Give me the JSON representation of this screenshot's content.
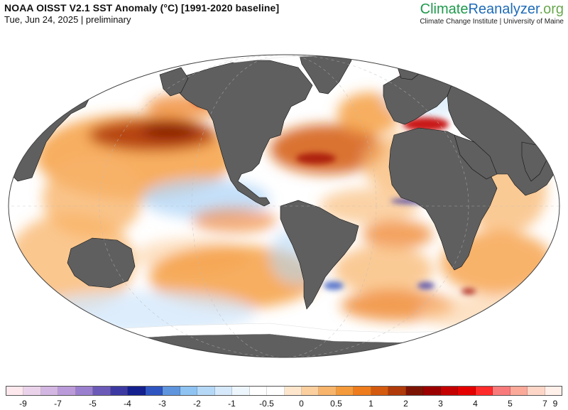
{
  "header": {
    "title": "NOAA OISST V2.1 SST Anomaly (°C) [1991-2020 baseline]",
    "subtitle": "Tue, Jun 24, 2025 | preliminary"
  },
  "brand": {
    "name_part1": "Climate",
    "name_part2": "Reanalyzer",
    "name_part3": ".org",
    "institution": "Climate Change Institute | University of Maine"
  },
  "colors": {
    "land": "#5f5f5f",
    "land_border": "#111111",
    "ice": "#ffffff",
    "ocean_neutral": "#ffffff",
    "brand_green": "#1e9a4c",
    "brand_blue": "#1e6bb8"
  },
  "legend": {
    "units": "°C",
    "swatches": [
      "#fde8ee",
      "#ead3ea",
      "#d4b6e2",
      "#bb9ad9",
      "#9b7fcf",
      "#6b5ab8",
      "#3c3aa2",
      "#14208e",
      "#2f55c0",
      "#5e95dd",
      "#8ec3f2",
      "#b5d8f7",
      "#d5e9fb",
      "#eef6fd",
      "#ffffff",
      "#ffffff",
      "#fde6cc",
      "#fbcf9e",
      "#f8b46a",
      "#f59a3a",
      "#ee7c1c",
      "#d45a10",
      "#b03a0a",
      "#7c1404",
      "#9a0000",
      "#c40000",
      "#e40000",
      "#ff2a2a",
      "#f87a7a",
      "#fbaa9a",
      "#fdd6c8",
      "#fff0ea"
    ],
    "tick_labels": [
      "-9",
      "-7",
      "-5",
      "-4",
      "-3",
      "-2",
      "-1",
      "-0.5",
      "0",
      "0.5",
      "1",
      "2",
      "3",
      "4",
      "5",
      "7",
      "9"
    ]
  }
}
